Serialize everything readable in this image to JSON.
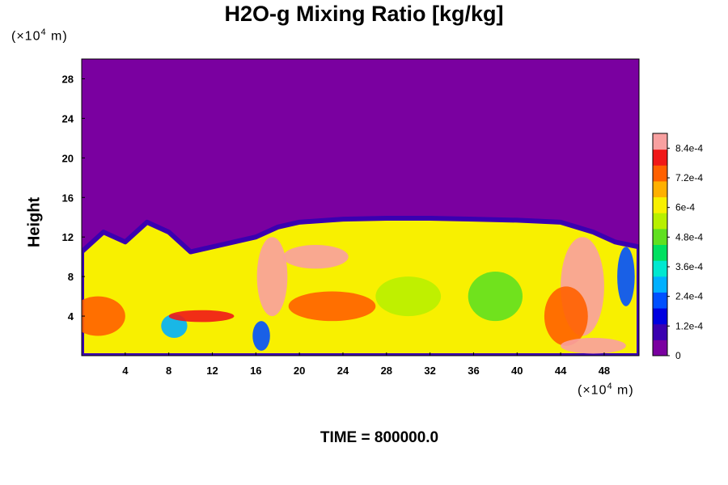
{
  "chart_data": {
    "type": "heatmap",
    "title": "H2O-g Mixing Ratio [kg/kg]",
    "ylabel": "Height",
    "y_unit": {
      "base": "(×10",
      "exp": "4",
      "rest": " m)"
    },
    "x_unit": {
      "base": "(×10",
      "exp": "4",
      "rest": " m)"
    },
    "xlim": [
      0,
      51.2
    ],
    "ylim": [
      0,
      30
    ],
    "x_ticks": [
      4,
      8,
      12,
      16,
      20,
      24,
      28,
      32,
      36,
      40,
      44,
      48
    ],
    "y_ticks": [
      4,
      8,
      12,
      16,
      20,
      24,
      28
    ],
    "colorbar": {
      "range": [
        0,
        0.0009
      ],
      "tick_values": [
        0,
        0.00012,
        0.00024,
        0.00036,
        0.00048,
        0.0006,
        0.00072,
        0.00084
      ],
      "tick_labels": [
        "0",
        "1.2e-4",
        "2.4e-4",
        "3.6e-4",
        "4.8e-4",
        "6e-4",
        "7.2e-4",
        "8.4e-4"
      ],
      "colors": [
        "#7a00a0",
        "#3a00b0",
        "#0000e0",
        "#0050ff",
        "#00b0ff",
        "#00e8d0",
        "#00e060",
        "#60e020",
        "#b8f000",
        "#f8f000",
        "#ffb000",
        "#ff6000",
        "#f01818",
        "#f8a0a0"
      ]
    },
    "fields": {
      "dry_value": 0.0,
      "moist_layer_top": [
        [
          0,
          10.5
        ],
        [
          2,
          12.5
        ],
        [
          4,
          11.5
        ],
        [
          6,
          13.5
        ],
        [
          8,
          12.5
        ],
        [
          10,
          10.5
        ],
        [
          12,
          11
        ],
        [
          14,
          11.5
        ],
        [
          16,
          12
        ],
        [
          18,
          13
        ],
        [
          20,
          13.5
        ],
        [
          24,
          13.8
        ],
        [
          28,
          13.9
        ],
        [
          32,
          13.9
        ],
        [
          36,
          13.8
        ],
        [
          40,
          13.7
        ],
        [
          44,
          13.5
        ],
        [
          47,
          12.5
        ],
        [
          49,
          11.5
        ],
        [
          51.2,
          11
        ]
      ],
      "background_value": 0.00063,
      "features": [
        {
          "x": 1.5,
          "y": 4,
          "rx": 2.5,
          "ry": 2,
          "value": 0.00075
        },
        {
          "x": 8.5,
          "y": 3,
          "rx": 1.2,
          "ry": 1.2,
          "value": 0.0003
        },
        {
          "x": 11,
          "y": 4,
          "rx": 3,
          "ry": 0.6,
          "value": 0.00078
        },
        {
          "x": 17.5,
          "y": 8,
          "rx": 1.4,
          "ry": 4,
          "value": 0.00088
        },
        {
          "x": 21.5,
          "y": 10,
          "rx": 3,
          "ry": 1.2,
          "value": 0.00088
        },
        {
          "x": 23,
          "y": 5,
          "rx": 4,
          "ry": 1.5,
          "value": 0.00076
        },
        {
          "x": 16.5,
          "y": 2,
          "rx": 0.8,
          "ry": 1.5,
          "value": 0.0002
        },
        {
          "x": 30,
          "y": 6,
          "rx": 3,
          "ry": 2,
          "value": 0.00052
        },
        {
          "x": 38,
          "y": 6,
          "rx": 2.5,
          "ry": 2.5,
          "value": 0.00048
        },
        {
          "x": 46,
          "y": 7,
          "rx": 2,
          "ry": 5,
          "value": 0.00086
        },
        {
          "x": 44.5,
          "y": 4,
          "rx": 2,
          "ry": 3,
          "value": 0.00074
        },
        {
          "x": 47,
          "y": 1,
          "rx": 3,
          "ry": 0.8,
          "value": 0.00086
        },
        {
          "x": 50,
          "y": 8,
          "rx": 0.8,
          "ry": 3,
          "value": 0.0002
        }
      ]
    }
  },
  "footer": {
    "time_label": "TIME = 800000.0"
  }
}
